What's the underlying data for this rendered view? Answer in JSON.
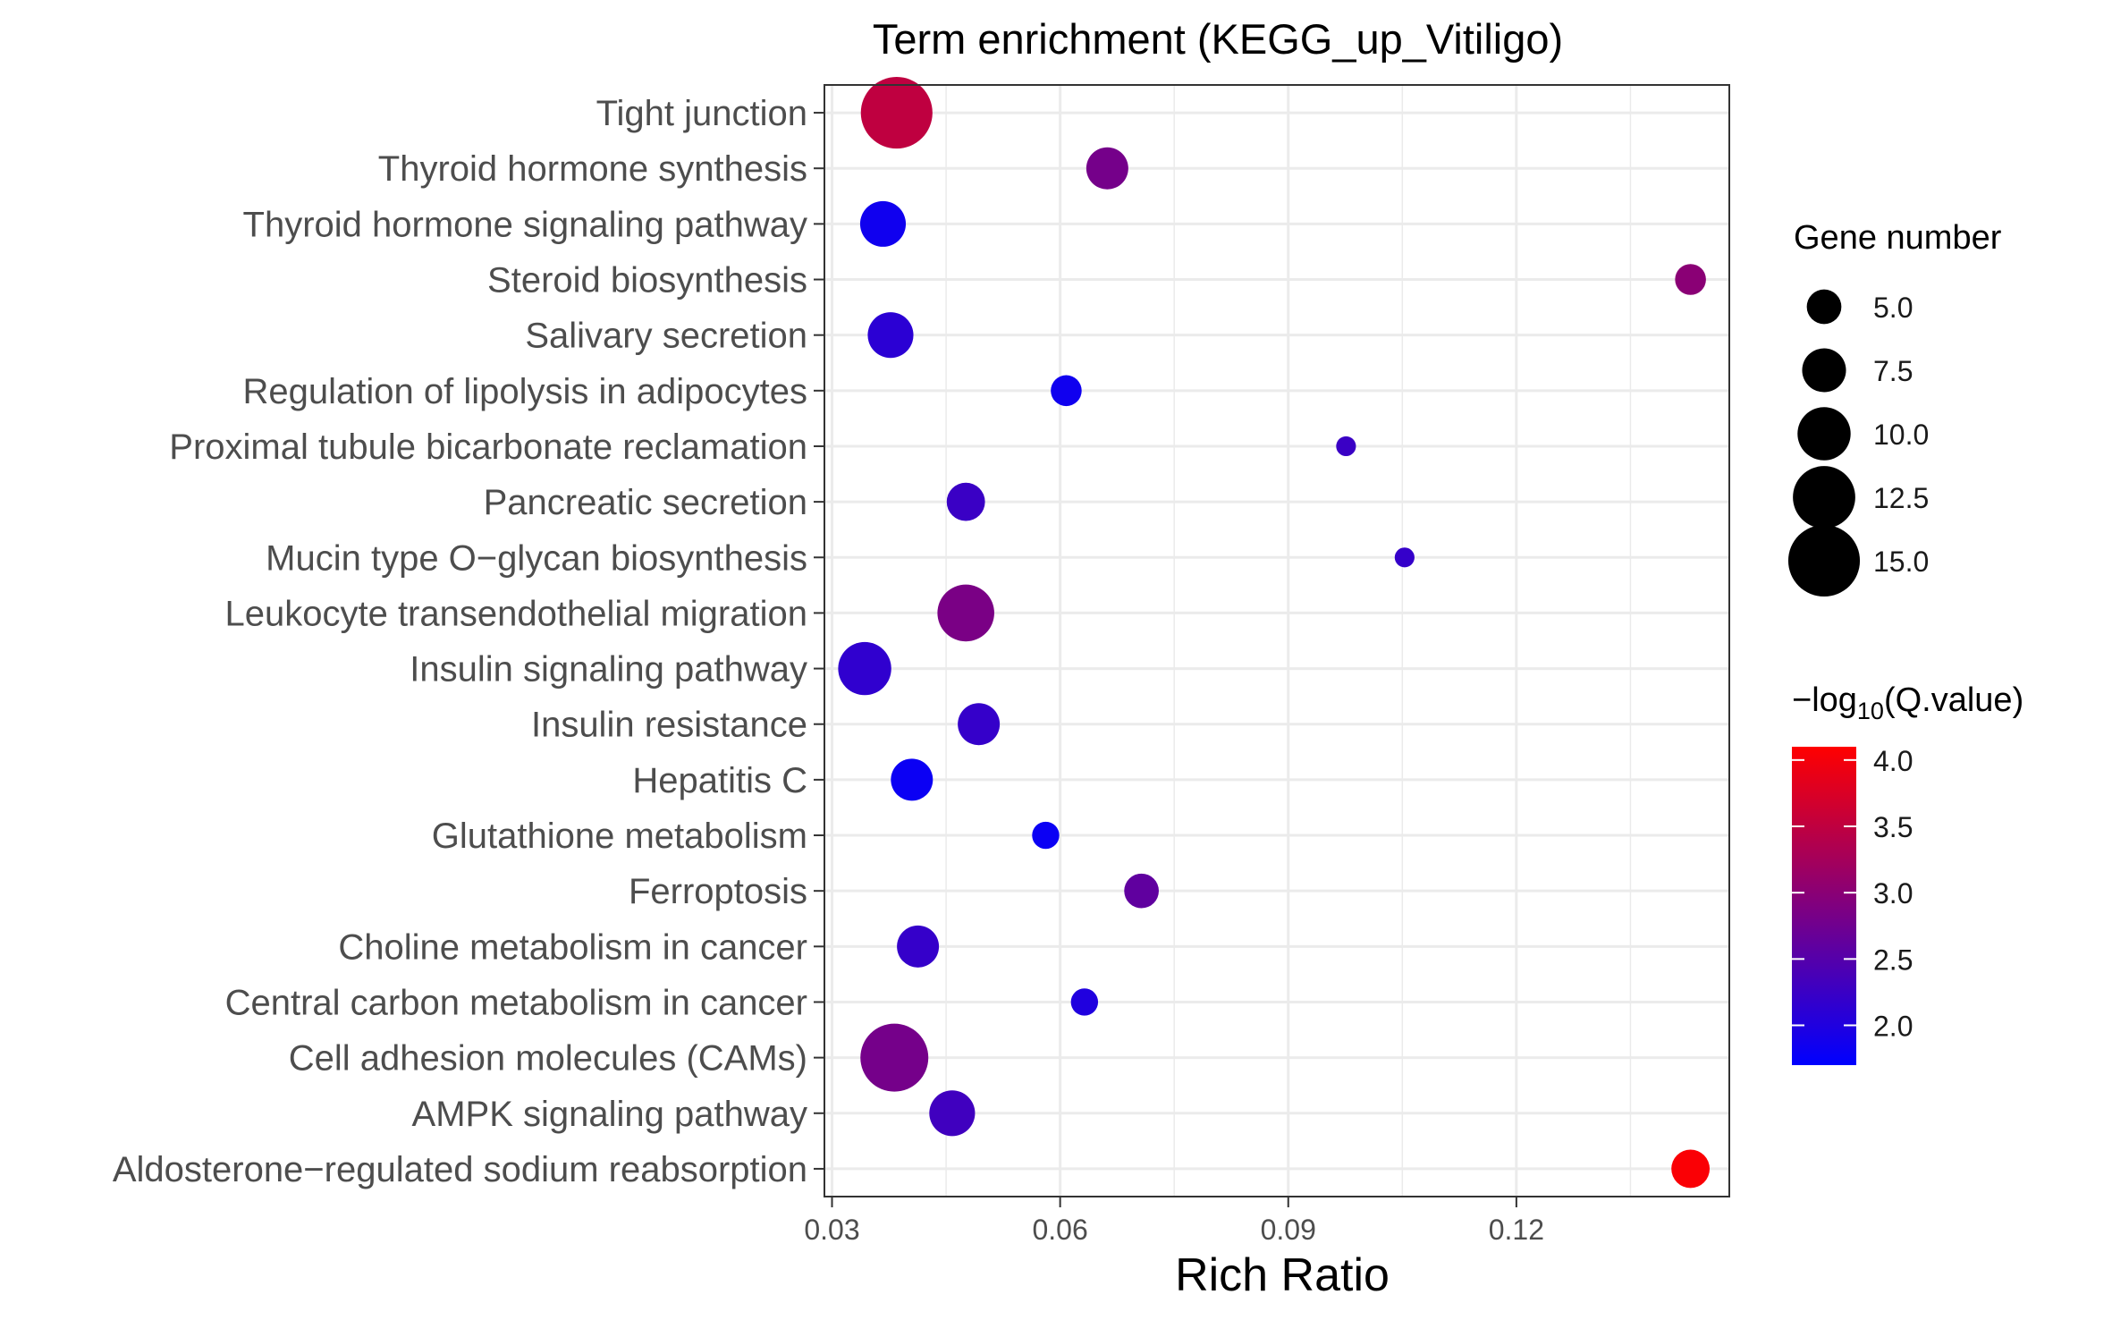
{
  "chart_data": {
    "type": "scatter",
    "title": "Term enrichment (KEGG_up_Vitiligo)",
    "xlabel": "Rich Ratio",
    "ylabel": "",
    "xlim": [
      0.029,
      0.148
    ],
    "x_ticks": [
      0.03,
      0.06,
      0.09,
      0.12
    ],
    "x_tick_labels": [
      "0.03",
      "0.06",
      "0.09",
      "0.12"
    ],
    "grid": true,
    "categories": [
      "Tight junction",
      "Thyroid hormone synthesis",
      "Thyroid hormone signaling pathway",
      "Steroid biosynthesis",
      "Salivary secretion",
      "Regulation of lipolysis in adipocytes",
      "Proximal tubule bicarbonate reclamation",
      "Pancreatic secretion",
      "Mucin type O−glycan biosynthesis",
      "Leukocyte transendothelial migration",
      "Insulin signaling pathway",
      "Insulin resistance",
      "Hepatitis C",
      "Glutathione metabolism",
      "Ferroptosis",
      "Choline metabolism in cancer",
      "Central carbon metabolism in cancer",
      "Cell adhesion molecules (CAMs)",
      "AMPK signaling pathway",
      "Aldosterone−regulated sodium reabsorption"
    ],
    "points": [
      {
        "term": "Tight junction",
        "rich_ratio": 0.0385,
        "gene_number": 15,
        "neg_log10_q": 3.5
      },
      {
        "term": "Thyroid hormone synthesis",
        "rich_ratio": 0.0662,
        "gene_number": 7,
        "neg_log10_q": 2.8
      },
      {
        "term": "Thyroid hormone signaling pathway",
        "rich_ratio": 0.0367,
        "gene_number": 8,
        "neg_log10_q": 1.85
      },
      {
        "term": "Steroid biosynthesis",
        "rich_ratio": 0.1429,
        "gene_number": 4,
        "neg_log10_q": 3.0
      },
      {
        "term": "Salivary secretion",
        "rich_ratio": 0.0377,
        "gene_number": 8,
        "neg_log10_q": 2.1
      },
      {
        "term": "Regulation of lipolysis in adipocytes",
        "rich_ratio": 0.0608,
        "gene_number": 4,
        "neg_log10_q": 1.85
      },
      {
        "term": "Proximal tubule bicarbonate reclamation",
        "rich_ratio": 0.0976,
        "gene_number": 1,
        "neg_log10_q": 2.25
      },
      {
        "term": "Pancreatic secretion",
        "rich_ratio": 0.0476,
        "gene_number": 6,
        "neg_log10_q": 2.25
      },
      {
        "term": "Mucin type O−glycan biosynthesis",
        "rich_ratio": 0.1053,
        "gene_number": 1,
        "neg_log10_q": 2.2
      },
      {
        "term": "Leukocyte transendothelial migration",
        "rich_ratio": 0.0476,
        "gene_number": 11,
        "neg_log10_q": 2.85
      },
      {
        "term": "Insulin signaling pathway",
        "rich_ratio": 0.0343,
        "gene_number": 10,
        "neg_log10_q": 2.15
      },
      {
        "term": "Insulin resistance",
        "rich_ratio": 0.0493,
        "gene_number": 7,
        "neg_log10_q": 2.2
      },
      {
        "term": "Hepatitis C",
        "rich_ratio": 0.0405,
        "gene_number": 7,
        "neg_log10_q": 1.8
      },
      {
        "term": "Glutathione metabolism",
        "rich_ratio": 0.0581,
        "gene_number": 3,
        "neg_log10_q": 1.8
      },
      {
        "term": "Ferroptosis",
        "rich_ratio": 0.0707,
        "gene_number": 5,
        "neg_log10_q": 2.6
      },
      {
        "term": "Choline metabolism in cancer",
        "rich_ratio": 0.0413,
        "gene_number": 7,
        "neg_log10_q": 2.2
      },
      {
        "term": "Central carbon metabolism in cancer",
        "rich_ratio": 0.0632,
        "gene_number": 3,
        "neg_log10_q": 2.0
      },
      {
        "term": "Cell adhesion molecules (CAMs)",
        "rich_ratio": 0.0382,
        "gene_number": 14,
        "neg_log10_q": 2.8
      },
      {
        "term": "AMPK signaling pathway",
        "rich_ratio": 0.0458,
        "gene_number": 8,
        "neg_log10_q": 2.3
      },
      {
        "term": "Aldosterone−regulated sodium reabsorption",
        "rich_ratio": 0.1429,
        "gene_number": 6,
        "neg_log10_q": 4.05
      }
    ],
    "size_legend": {
      "title": "Gene number",
      "values": [
        5.0,
        7.5,
        10.0,
        12.5,
        15.0
      ],
      "labels": [
        "5.0",
        "7.5",
        "10.0",
        "12.5",
        "15.0"
      ]
    },
    "color_legend": {
      "title_prefix": "−log",
      "title_sub": "10",
      "title_suffix": "(Q.value)",
      "range": [
        1.7,
        4.1
      ],
      "ticks": [
        2.0,
        2.5,
        3.0,
        3.5,
        4.0
      ],
      "tick_labels": [
        "2.0",
        "2.5",
        "3.0",
        "3.5",
        "4.0"
      ],
      "colors": [
        "#0000ff",
        "#ff0000"
      ]
    },
    "colors": {
      "grid": "#ebebeb",
      "panel_border": "#333333",
      "axis_text": "#4d4d4d"
    }
  }
}
